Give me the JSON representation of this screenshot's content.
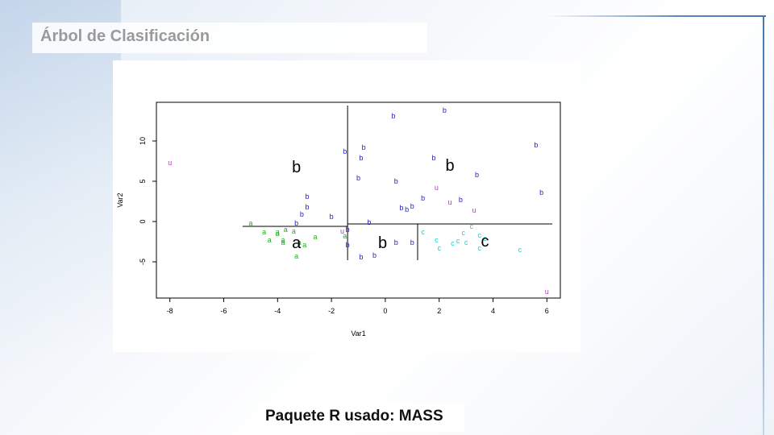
{
  "page": {
    "title": "Árbol de Clasificación",
    "caption": "Paquete R usado: MASS"
  },
  "colors": {
    "a": "#22aa22",
    "b": "#2222bb",
    "c": "#22cccc",
    "u": "#bb33cc"
  },
  "chart_data": {
    "type": "scatter",
    "title": "",
    "xlabel": "Var1",
    "ylabel": "Var2",
    "xlim": [
      -8.5,
      6.5
    ],
    "ylim": [
      -9.5,
      14.8
    ],
    "xticks": [
      -8,
      -6,
      -4,
      -2,
      0,
      2,
      4,
      6
    ],
    "yticks": [
      -5,
      0,
      5,
      10
    ],
    "grid": false,
    "points": [
      {
        "x": -8.0,
        "y": 7.3,
        "label": "u"
      },
      {
        "x": 0.3,
        "y": 13.1,
        "label": "b"
      },
      {
        "x": 2.2,
        "y": 13.8,
        "label": "b"
      },
      {
        "x": -0.8,
        "y": 9.2,
        "label": "b"
      },
      {
        "x": -1.5,
        "y": 8.7,
        "label": "b"
      },
      {
        "x": -0.9,
        "y": 7.9,
        "label": "b"
      },
      {
        "x": 1.8,
        "y": 7.9,
        "label": "b"
      },
      {
        "x": 5.6,
        "y": 9.5,
        "label": "b"
      },
      {
        "x": 3.4,
        "y": 5.8,
        "label": "b"
      },
      {
        "x": -1.0,
        "y": 5.4,
        "label": "b"
      },
      {
        "x": 0.4,
        "y": 5.0,
        "label": "b"
      },
      {
        "x": 5.8,
        "y": 3.6,
        "label": "b"
      },
      {
        "x": -2.9,
        "y": 3.1,
        "label": "b"
      },
      {
        "x": 1.4,
        "y": 2.9,
        "label": "b"
      },
      {
        "x": 2.8,
        "y": 2.7,
        "label": "b"
      },
      {
        "x": -2.9,
        "y": 1.8,
        "label": "b"
      },
      {
        "x": 0.6,
        "y": 1.7,
        "label": "b"
      },
      {
        "x": 0.8,
        "y": 1.5,
        "label": "b"
      },
      {
        "x": 1.0,
        "y": 1.9,
        "label": "b"
      },
      {
        "x": -3.1,
        "y": 0.9,
        "label": "b"
      },
      {
        "x": -2.0,
        "y": 0.6,
        "label": "b"
      },
      {
        "x": -3.3,
        "y": -0.2,
        "label": "b"
      },
      {
        "x": -0.6,
        "y": -0.1,
        "label": "b"
      },
      {
        "x": -1.4,
        "y": -1.0,
        "label": "b"
      },
      {
        "x": -1.4,
        "y": -2.9,
        "label": "b"
      },
      {
        "x": 0.4,
        "y": -2.6,
        "label": "b"
      },
      {
        "x": 1.0,
        "y": -2.6,
        "label": "b"
      },
      {
        "x": -0.4,
        "y": -4.2,
        "label": "b"
      },
      {
        "x": -0.9,
        "y": -4.4,
        "label": "b"
      },
      {
        "x": 1.9,
        "y": 4.2,
        "label": "u"
      },
      {
        "x": 2.4,
        "y": 2.4,
        "label": "u"
      },
      {
        "x": 3.3,
        "y": 1.4,
        "label": "u"
      },
      {
        "x": -1.6,
        "y": -1.2,
        "label": "u"
      },
      {
        "x": 6.0,
        "y": -8.7,
        "label": "u"
      },
      {
        "x": -5.0,
        "y": -0.2,
        "label": "a"
      },
      {
        "x": -4.5,
        "y": -1.3,
        "label": "a"
      },
      {
        "x": -4.0,
        "y": -1.3,
        "label": "a"
      },
      {
        "x": -3.7,
        "y": -1.0,
        "label": "a"
      },
      {
        "x": -3.4,
        "y": -1.2,
        "label": "a"
      },
      {
        "x": -4.0,
        "y": -1.5,
        "label": "a"
      },
      {
        "x": -4.3,
        "y": -2.3,
        "label": "a"
      },
      {
        "x": -3.8,
        "y": -2.3,
        "label": "a"
      },
      {
        "x": -3.8,
        "y": -2.6,
        "label": "a"
      },
      {
        "x": -3.2,
        "y": -2.6,
        "label": "a"
      },
      {
        "x": -3.0,
        "y": -2.9,
        "label": "a"
      },
      {
        "x": -2.6,
        "y": -1.9,
        "label": "a"
      },
      {
        "x": -1.5,
        "y": -1.8,
        "label": "a"
      },
      {
        "x": -3.3,
        "y": -4.3,
        "label": "a"
      },
      {
        "x": 1.4,
        "y": -1.3,
        "label": "c"
      },
      {
        "x": 3.2,
        "y": -0.6,
        "label": "c"
      },
      {
        "x": 2.9,
        "y": -1.4,
        "label": "c"
      },
      {
        "x": 3.5,
        "y": -1.7,
        "label": "c"
      },
      {
        "x": 3.7,
        "y": -2.1,
        "label": "c"
      },
      {
        "x": 1.9,
        "y": -2.3,
        "label": "c"
      },
      {
        "x": 2.7,
        "y": -2.4,
        "label": "c"
      },
      {
        "x": 3.0,
        "y": -2.6,
        "label": "c"
      },
      {
        "x": 2.5,
        "y": -2.7,
        "label": "c"
      },
      {
        "x": 2.0,
        "y": -3.3,
        "label": "c"
      },
      {
        "x": 3.5,
        "y": -3.3,
        "label": "c"
      },
      {
        "x": 5.0,
        "y": -3.5,
        "label": "c"
      }
    ],
    "splits": [
      {
        "x1": -1.4,
        "y1": -4.8,
        "x2": -1.4,
        "y2": 14.4
      },
      {
        "x1": -5.3,
        "y1": -0.6,
        "x2": -1.4,
        "y2": -0.6
      },
      {
        "x1": -1.4,
        "y1": -0.3,
        "x2": 6.2,
        "y2": -0.3
      },
      {
        "x1": 1.2,
        "y1": -0.3,
        "x2": 1.2,
        "y2": -4.8
      }
    ],
    "region_labels": [
      {
        "x": -3.3,
        "y": 6.8,
        "label": "b"
      },
      {
        "x": 2.4,
        "y": 7.0,
        "label": "b"
      },
      {
        "x": -3.3,
        "y": -2.6,
        "label": "a"
      },
      {
        "x": -0.1,
        "y": -2.6,
        "label": "b"
      },
      {
        "x": 3.7,
        "y": -2.4,
        "label": "c"
      }
    ]
  }
}
